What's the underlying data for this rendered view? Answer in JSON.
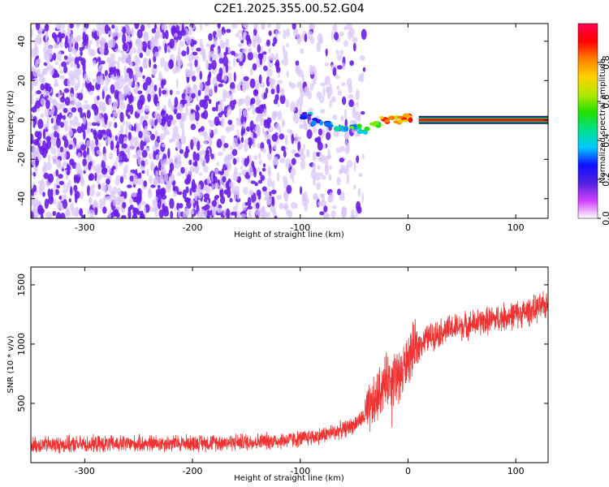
{
  "title": "C2E1.2025.355.00.52.G04",
  "colors": {
    "signal": "#ee3333",
    "scatter_main": "#6a1ee6",
    "scatter_light": "#d8c4f6",
    "frame": "#000000"
  },
  "chart_data": [
    {
      "type": "heatmap",
      "name": "spectrogram",
      "title": "C2E1.2025.355.00.52.G04",
      "xlabel": "Height of straight line (km)",
      "ylabel": "Frequency (Hz)",
      "xlim": [
        -350,
        130
      ],
      "ylim": [
        -50,
        49
      ],
      "x_ticks": [
        -300,
        -200,
        -100,
        0,
        100
      ],
      "y_ticks": [
        -40,
        -20,
        0,
        20,
        40
      ],
      "colorbar": {
        "label": "Normalized spectral amplitude",
        "range": [
          0.0,
          1.0
        ],
        "ticks": [
          "0.0",
          "0.2",
          "0.4",
          "0.6",
          "0.8"
        ],
        "tick_values": [
          0.0,
          0.2,
          0.4,
          0.6,
          0.8
        ],
        "stops": [
          "#ffffff",
          "#d040ff",
          "#5020e0",
          "#1010ff",
          "#00c8ff",
          "#00e08a",
          "#20e000",
          "#b0e800",
          "#ffd000",
          "#ff8000",
          "#ff0000",
          "#ff0050"
        ]
      },
      "signal_line": {
        "x_start": 10,
        "x_end": 130,
        "frequency": 0,
        "amplitude": 0.9
      },
      "signal_clusters": [
        {
          "x": -95,
          "f": 2,
          "amp": 0.4
        },
        {
          "x": -85,
          "f": -1,
          "amp": 0.45
        },
        {
          "x": -75,
          "f": -2,
          "amp": 0.5
        },
        {
          "x": -62,
          "f": -4,
          "amp": 0.55
        },
        {
          "x": -50,
          "f": -4,
          "amp": 0.55
        },
        {
          "x": -40,
          "f": -5,
          "amp": 0.6
        },
        {
          "x": -30,
          "f": -2,
          "amp": 0.7
        },
        {
          "x": -20,
          "f": 0,
          "amp": 0.85
        },
        {
          "x": -10,
          "f": 0,
          "amp": 0.9
        },
        {
          "x": 0,
          "f": 1,
          "amp": 0.9
        }
      ]
    },
    {
      "type": "line",
      "name": "snr",
      "xlabel": "Height of straight line (km)",
      "ylabel": "SNR (10 * v/v)",
      "xlim": [
        -350,
        130
      ],
      "ylim": [
        0,
        1650
      ],
      "x_ticks": [
        -300,
        -200,
        -100,
        0,
        100
      ],
      "y_ticks": [
        500,
        1000,
        1500
      ],
      "series": [
        {
          "name": "SNR",
          "x": [
            -350,
            -300,
            -250,
            -200,
            -150,
            -120,
            -100,
            -80,
            -60,
            -50,
            -40,
            -35,
            -30,
            -25,
            -20,
            -15,
            -10,
            -5,
            0,
            5,
            10,
            15,
            20,
            30,
            40,
            50,
            60,
            70,
            80,
            90,
            100,
            110,
            120,
            130
          ],
          "values": [
            150,
            155,
            160,
            165,
            175,
            185,
            200,
            230,
            280,
            320,
            390,
            450,
            520,
            620,
            700,
            720,
            730,
            760,
            870,
            950,
            990,
            1030,
            1060,
            1100,
            1130,
            1150,
            1170,
            1190,
            1210,
            1230,
            1250,
            1270,
            1300,
            1330
          ]
        }
      ]
    }
  ]
}
